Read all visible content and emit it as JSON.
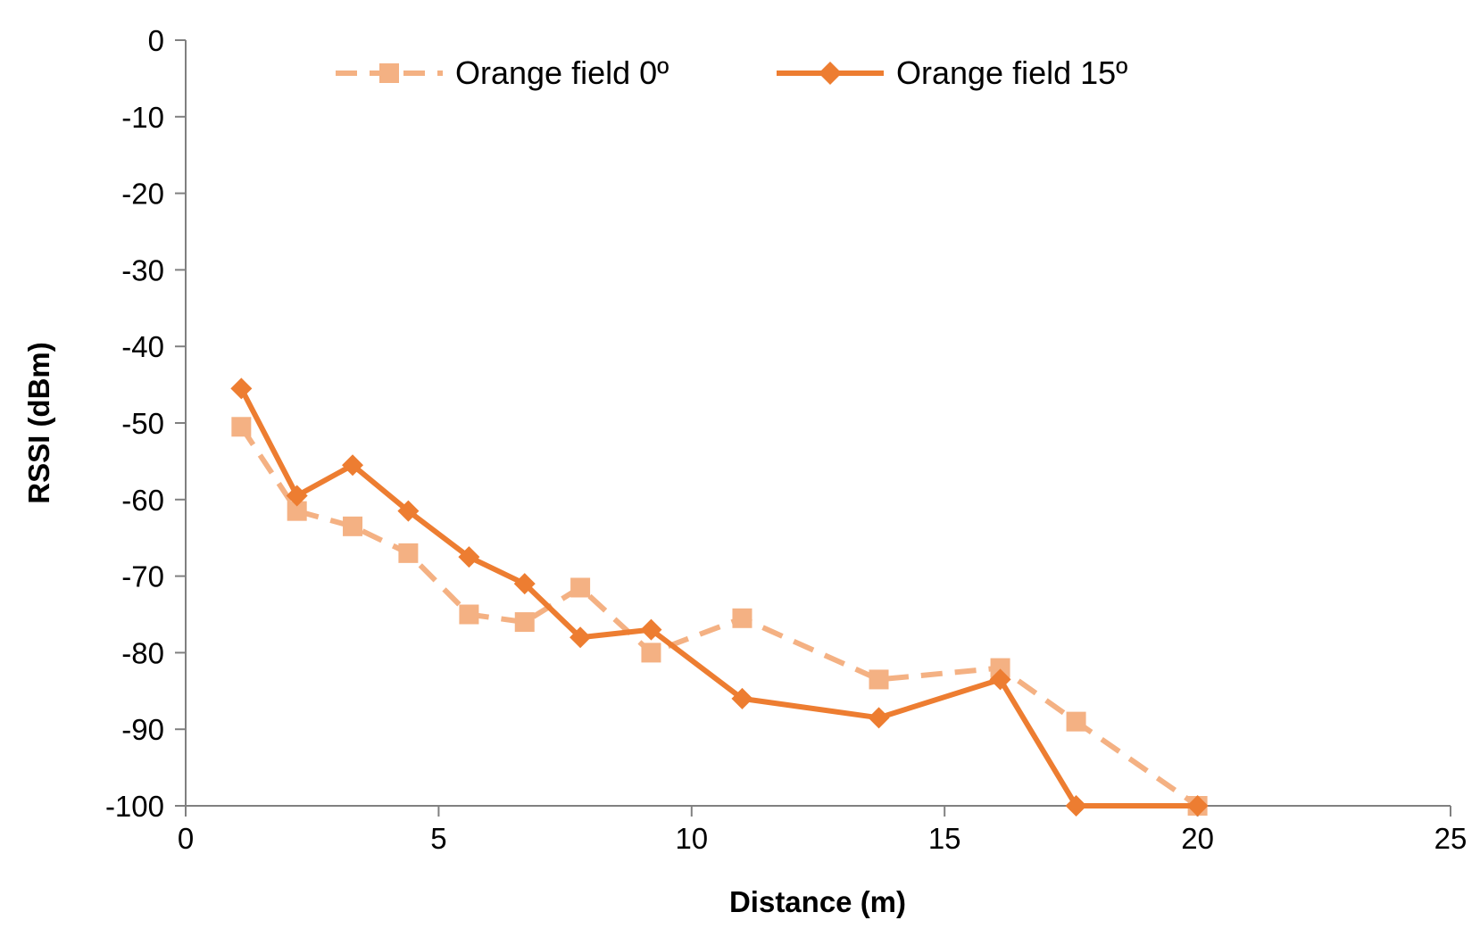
{
  "chart_data": {
    "type": "line",
    "title": "",
    "xlabel": "Distance (m)",
    "ylabel": "RSSI (dBm)",
    "xlim": [
      0,
      25
    ],
    "ylim": [
      -100,
      0
    ],
    "xticks": [
      0,
      5,
      10,
      15,
      20,
      25
    ],
    "yticks": [
      0,
      -10,
      -20,
      -30,
      -40,
      -50,
      -60,
      -70,
      -80,
      -90,
      -100
    ],
    "legend_position": "top",
    "grid": false,
    "series": [
      {
        "name": "Orange field 0º",
        "style": "dashed",
        "marker": "square",
        "color": "#F4B183",
        "x": [
          1.1,
          2.2,
          3.3,
          4.4,
          5.6,
          6.7,
          7.8,
          9.2,
          11.0,
          13.7,
          16.1,
          17.6,
          20.0
        ],
        "y": [
          -50.5,
          -61.5,
          -63.5,
          -67.0,
          -75.0,
          -76.0,
          -71.5,
          -80.0,
          -75.5,
          -83.5,
          -82.0,
          -89.0,
          -100.0
        ]
      },
      {
        "name": "Orange field 15º",
        "style": "solid",
        "marker": "diamond",
        "color": "#ED7D31",
        "x": [
          1.1,
          2.2,
          3.3,
          4.4,
          5.6,
          6.7,
          7.8,
          9.2,
          11.0,
          13.7,
          16.1,
          17.6,
          20.0
        ],
        "y": [
          -45.5,
          -59.5,
          -55.5,
          -61.5,
          -67.5,
          -71.0,
          -78.0,
          -77.0,
          -86.0,
          -88.5,
          -83.5,
          -100.0,
          -100.0
        ]
      }
    ]
  }
}
